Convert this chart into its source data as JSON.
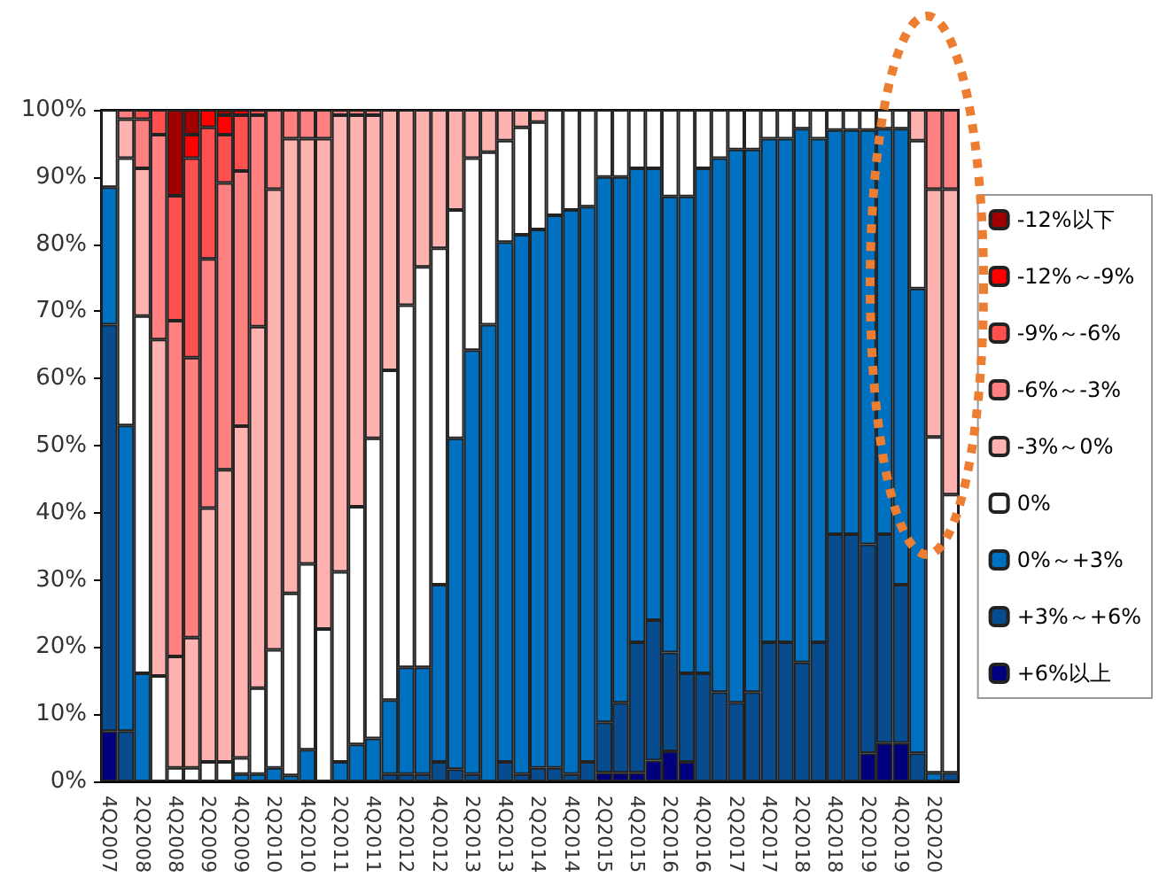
{
  "chart_data": {
    "type": "bar",
    "stacked": true,
    "legend": "right",
    "categories": [
      "4Q2007",
      null,
      "2Q2008",
      null,
      "4Q2008",
      null,
      "2Q2009",
      null,
      "4Q2009",
      null,
      "2Q2010",
      null,
      "4Q2010",
      null,
      "2Q2011",
      null,
      "4Q2011",
      null,
      "2Q2012",
      null,
      "4Q2012",
      null,
      "2Q2013",
      null,
      "4Q2013",
      null,
      "2Q2014",
      null,
      "4Q2014",
      null,
      "2Q2015",
      null,
      "4Q2015",
      null,
      "2Q2016",
      null,
      "4Q2016",
      null,
      "2Q2017",
      null,
      "4Q2017",
      null,
      "2Q2018",
      null,
      "4Q2018",
      null,
      "2Q2019",
      null,
      "4Q2019",
      null,
      "2Q2020",
      null
    ],
    "ylim": [
      0,
      100
    ],
    "yticks": [
      {
        "value": 0,
        "label": "0%"
      },
      {
        "value": 10,
        "label": "10%"
      },
      {
        "value": 20,
        "label": "20%"
      },
      {
        "value": 30,
        "label": "30%"
      },
      {
        "value": 40,
        "label": "40%"
      },
      {
        "value": 50,
        "label": "50%"
      },
      {
        "value": 60,
        "label": "60%"
      },
      {
        "value": 70,
        "label": "70%"
      },
      {
        "value": 80,
        "label": "80%"
      },
      {
        "value": 90,
        "label": "90%"
      },
      {
        "value": 100,
        "label": "100%"
      }
    ],
    "series": [
      {
        "name": "+6%以上",
        "color": "#00007f",
        "values": [
          7.5,
          0,
          0,
          0,
          0,
          0,
          0,
          0,
          0,
          0,
          0,
          0,
          0,
          0,
          0,
          0,
          0,
          0,
          0,
          0,
          0,
          0,
          0,
          0,
          0,
          0,
          0,
          0,
          0,
          0,
          1.3,
          1.3,
          1.3,
          3.1,
          4.5,
          2.9,
          0,
          0,
          0,
          0,
          0,
          0,
          0,
          0,
          0,
          0,
          4.2,
          5.7,
          5.7,
          0,
          0,
          0
        ]
      },
      {
        "name": "+3%～+6%",
        "color": "#074c8e",
        "values": [
          60.5,
          7.5,
          0,
          0,
          0,
          0,
          0,
          0,
          0,
          0,
          0,
          0,
          0,
          0,
          0,
          0,
          0,
          1.1,
          1.1,
          1.1,
          2.9,
          1.8,
          1.1,
          0,
          2.9,
          1.1,
          2,
          2,
          1.1,
          2.9,
          7.5,
          10.4,
          19.4,
          20.9,
          14.7,
          13.2,
          16.1,
          13.3,
          11.7,
          13.3,
          20.7,
          20.7,
          17.7,
          20.7,
          36.8,
          36.8,
          31.1,
          31.1,
          23.6,
          4.2,
          0,
          1.3
        ]
      },
      {
        "name": "0%～+3%",
        "color": "#0070c0",
        "values": [
          20.5,
          45.5,
          16.1,
          0,
          0,
          0,
          0,
          0,
          1.1,
          1.1,
          2,
          0.9,
          4.7,
          0,
          2.9,
          5.5,
          6.4,
          11,
          15.9,
          15.9,
          26.4,
          49.3,
          63.1,
          68,
          77.4,
          80.3,
          80.2,
          82.3,
          84,
          82.7,
          81.2,
          78.3,
          70.6,
          67.3,
          67.9,
          71,
          75.2,
          79.5,
          82.4,
          80.8,
          75,
          75,
          79.5,
          75,
          60.2,
          60.2,
          61.7,
          60.4,
          67.9,
          69.2,
          1.3,
          0
        ]
      },
      {
        "name": "0%",
        "color": "#ffffff",
        "values": [
          11.5,
          39.8,
          53.2,
          15.7,
          2,
          2,
          2.9,
          2.9,
          2.4,
          12.8,
          17.6,
          27.1,
          27.7,
          22.7,
          28.3,
          35.4,
          44.7,
          49.1,
          53.9,
          59.6,
          50.1,
          34,
          28.6,
          25.7,
          15.1,
          16,
          16,
          15.7,
          14.9,
          14.4,
          10,
          10,
          8.7,
          8.7,
          12.9,
          12.9,
          8.7,
          7.2,
          5.9,
          5.9,
          4.3,
          4.3,
          2.8,
          4.3,
          3,
          3,
          3,
          2.8,
          2.8,
          22,
          50,
          41.4
        ]
      },
      {
        "name": "-3%～0%",
        "color": "#ffb3b0",
        "values": [
          0,
          5.8,
          22,
          50.1,
          16.6,
          19.4,
          37.8,
          43.5,
          49.4,
          53.8,
          68.6,
          67.7,
          63.3,
          73,
          68,
          58.3,
          48.1,
          38.8,
          29.1,
          23.4,
          20.6,
          14.9,
          7.2,
          6.3,
          4.6,
          2.6,
          1.8,
          0,
          0,
          0,
          0,
          0,
          0,
          0,
          0,
          0,
          0,
          0,
          0,
          0,
          0,
          0,
          0,
          0,
          0,
          0,
          0,
          0,
          0,
          4.6,
          36.9,
          45.5
        ]
      },
      {
        "name": "-6%～-3%",
        "color": "#ff8080",
        "values": [
          0,
          1.4,
          7.3,
          30.5,
          50,
          41.7,
          37.1,
          42.7,
          38,
          31.5,
          11.8,
          4.3,
          4.3,
          4.3,
          0.8,
          0.8,
          0.8,
          0,
          0,
          0,
          0,
          0,
          0,
          0,
          0,
          0,
          0,
          0,
          0,
          0,
          0,
          0,
          0,
          0,
          0,
          0,
          0,
          0,
          0,
          0,
          0,
          0,
          0,
          0,
          0,
          0,
          0,
          0,
          0,
          0,
          11.8,
          11.8
        ]
      },
      {
        "name": "-9%～-6%",
        "color": "#ff5050",
        "values": [
          0,
          0,
          1.4,
          3.7,
          18.6,
          29.7,
          19.6,
          7.2,
          8.3,
          0.8,
          0,
          0,
          0,
          0,
          0,
          0,
          0,
          0,
          0,
          0,
          0,
          0,
          0,
          0,
          0,
          0,
          0,
          0,
          0,
          0,
          0,
          0,
          0,
          0,
          0,
          0,
          0,
          0,
          0,
          0,
          0,
          0,
          0,
          0,
          0,
          0,
          0,
          0,
          0,
          0,
          0,
          0
        ]
      },
      {
        "name": "-12%～-9%",
        "color": "#ff0000",
        "values": [
          0,
          0,
          0,
          0,
          0,
          3.5,
          2.6,
          2.9,
          0.8,
          0,
          0,
          0,
          0,
          0,
          0,
          0,
          0,
          0,
          0,
          0,
          0,
          0,
          0,
          0,
          0,
          0,
          0,
          0,
          0,
          0,
          0,
          0,
          0,
          0,
          0,
          0,
          0,
          0,
          0,
          0,
          0,
          0,
          0,
          0,
          0,
          0,
          0,
          0,
          0,
          0,
          0,
          0
        ]
      },
      {
        "name": "-12%以下",
        "color": "#a00000",
        "values": [
          0,
          0,
          0,
          0,
          12.8,
          3.7,
          0,
          0.8,
          0,
          0,
          0,
          0,
          0,
          0,
          0,
          0,
          0,
          0,
          0,
          0,
          0,
          0,
          0,
          0,
          0,
          0,
          0,
          0,
          0,
          0,
          0,
          0,
          0,
          0,
          0,
          0,
          0,
          0,
          0,
          0,
          0,
          0,
          0,
          0,
          0,
          0,
          0,
          0,
          0,
          0,
          0,
          0
        ]
      }
    ]
  }
}
